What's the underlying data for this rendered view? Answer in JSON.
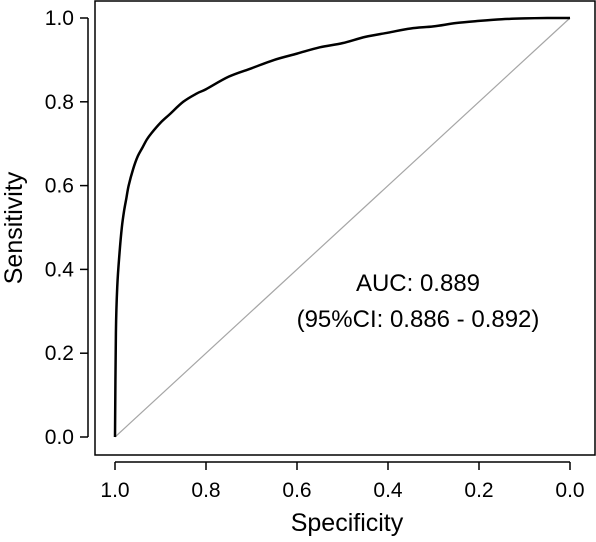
{
  "chart_data": {
    "type": "line",
    "title": "",
    "xlabel": "Specificity",
    "ylabel": "Sensitivity",
    "xlim": [
      1.0,
      0.0
    ],
    "ylim": [
      0.0,
      1.0
    ],
    "x_ticks": [
      "1.0",
      "0.8",
      "0.6",
      "0.4",
      "0.2",
      "0.0"
    ],
    "y_ticks": [
      "0.0",
      "0.2",
      "0.4",
      "0.6",
      "0.8",
      "1.0"
    ],
    "grid": false,
    "series": [
      {
        "color": "#000000",
        "specificity": [
          1.0,
          0.998,
          0.995,
          0.99,
          0.985,
          0.98,
          0.975,
          0.97,
          0.96,
          0.95,
          0.94,
          0.93,
          0.92,
          0.9,
          0.88,
          0.85,
          0.82,
          0.8,
          0.75,
          0.7,
          0.65,
          0.6,
          0.55,
          0.5,
          0.45,
          0.4,
          0.35,
          0.3,
          0.25,
          0.2,
          0.15,
          0.1,
          0.05,
          0.0
        ],
        "sensitivity": [
          0.0,
          0.25,
          0.36,
          0.44,
          0.5,
          0.54,
          0.57,
          0.6,
          0.64,
          0.67,
          0.69,
          0.71,
          0.725,
          0.75,
          0.77,
          0.8,
          0.82,
          0.83,
          0.86,
          0.88,
          0.9,
          0.915,
          0.93,
          0.94,
          0.955,
          0.965,
          0.975,
          0.98,
          0.988,
          0.993,
          0.997,
          0.999,
          1.0,
          1.0
        ]
      }
    ],
    "reference_line": {
      "from": [
        1.0,
        0.0
      ],
      "to": [
        0.0,
        1.0
      ],
      "color": "#a6a6a6"
    },
    "annotations": [
      "AUC: 0.889",
      "(95%CI: 0.886 - 0.892)"
    ]
  }
}
